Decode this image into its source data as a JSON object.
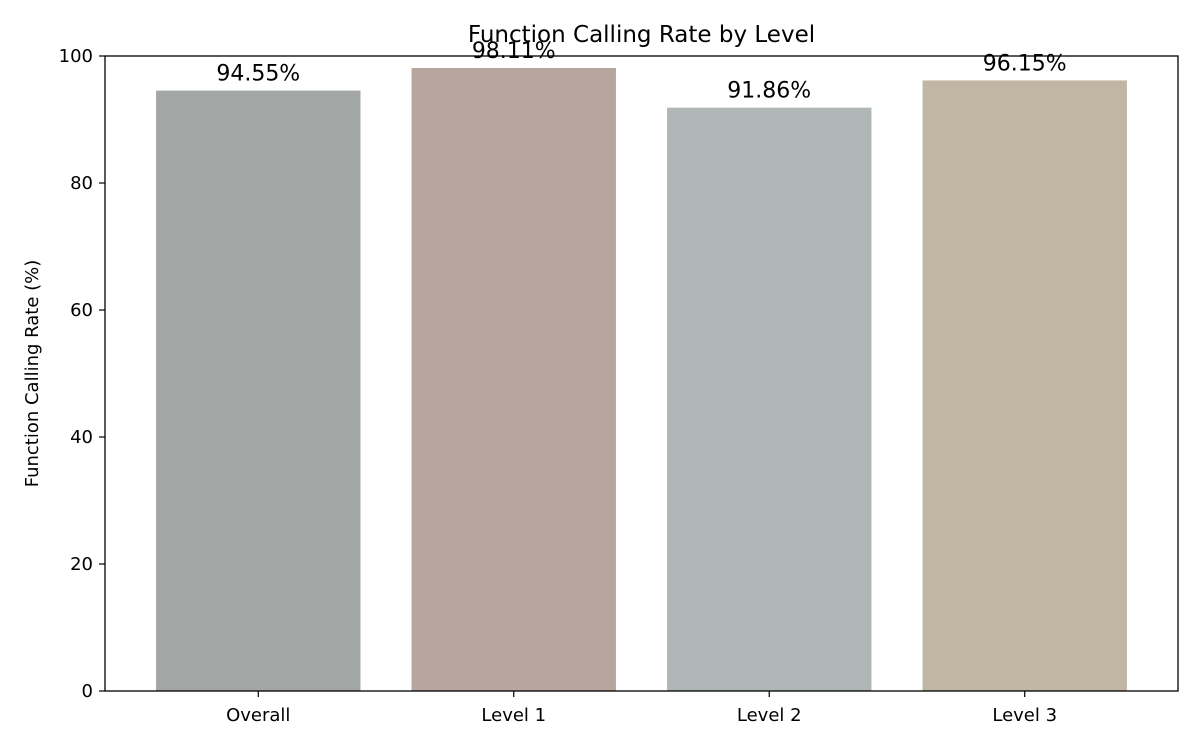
{
  "chart_data": {
    "type": "bar",
    "title": "Function Calling Rate by Level",
    "xlabel": "",
    "ylabel": "Function Calling Rate (%)",
    "categories": [
      "Overall",
      "Level 1",
      "Level 2",
      "Level 3"
    ],
    "values": [
      94.55,
      98.11,
      91.86,
      96.15
    ],
    "value_labels": [
      "94.55%",
      "98.11%",
      "91.86%",
      "96.15%"
    ],
    "colors": [
      "#a2a7a5",
      "#b6a69d",
      "#b0b6b5",
      "#c1b5a3"
    ],
    "ylim": [
      0,
      100
    ],
    "yticks": [
      0,
      20,
      40,
      60,
      80,
      100
    ],
    "ytick_labels": [
      "0",
      "20",
      "40",
      "60",
      "80",
      "100"
    ],
    "grid": false,
    "legend": "none"
  }
}
